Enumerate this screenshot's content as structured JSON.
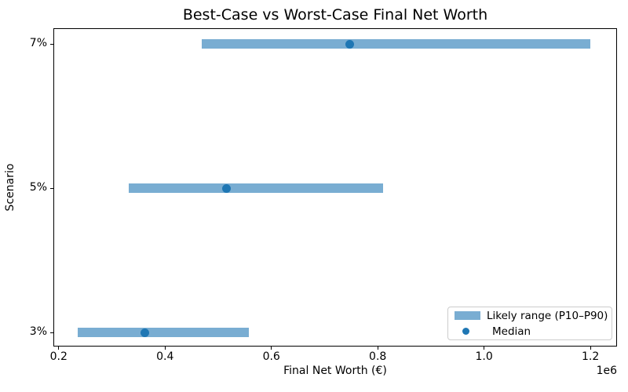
{
  "chart": {
    "title": "Best-Case vs Worst-Case Final Net Worth",
    "xlabel": "Final Net Worth (€)",
    "ylabel": "Scenario",
    "axis_offset_label": "1e6",
    "legend": {
      "range_label": "Likely range (P10–P90)",
      "median_label": "Median"
    }
  },
  "chart_data": {
    "type": "bar",
    "orientation": "horizontal",
    "title": "Best-Case vs Worst-Case Final Net Worth",
    "xlabel": "Final Net Worth (€)",
    "ylabel": "Scenario",
    "x_unit_multiplier": 1000000,
    "x_offset_text": "1e6",
    "categories": [
      "7%",
      "5%",
      "3%"
    ],
    "series": [
      {
        "name": "Likely range (P10–P90)",
        "role": "range_bar",
        "p10": [
          469000,
          331000,
          236000
        ],
        "p90": [
          1200000,
          810000,
          557000
        ]
      },
      {
        "name": "Median",
        "role": "point",
        "values": [
          748000,
          515000,
          362000
        ]
      }
    ],
    "x_ticks": [
      200000,
      400000,
      600000,
      800000,
      1000000,
      1200000
    ],
    "x_tick_labels": [
      "0.2",
      "0.4",
      "0.6",
      "0.8",
      "1.0",
      "1.2"
    ],
    "xlim": [
      190000,
      1250000
    ],
    "grid": false,
    "legend_position": "lower right",
    "colors": {
      "range_bar": "#79add2",
      "median": "#1f77b4",
      "axis": "#000000",
      "text": "#000000",
      "legend_border": "#cccccc",
      "background": "#ffffff"
    }
  }
}
